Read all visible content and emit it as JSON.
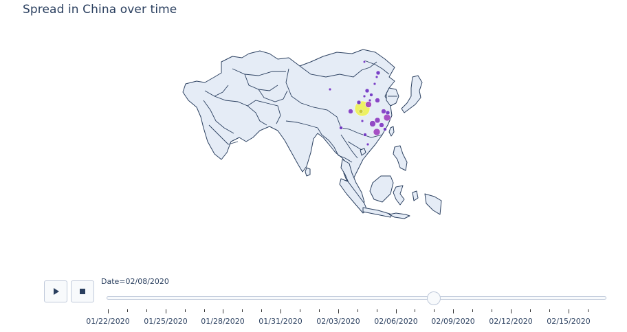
{
  "title": "Spread in China over time",
  "colors": {
    "land": "#e5ecf6",
    "border": "#2a3f5f",
    "bubble_low": "#6a2fc2",
    "bubble_mid": "#9e3fbf",
    "bubble_high": "#eff24a"
  },
  "slider": {
    "current_prefix": "Date=",
    "current_value": "02/08/2020",
    "current_index": 17,
    "frame_count": 26,
    "tick_labels": [
      "01/22/2020",
      "01/25/2020",
      "01/28/2020",
      "01/31/2020",
      "02/03/2020",
      "02/06/2020",
      "02/09/2020",
      "02/12/2020",
      "02/15/2020"
    ]
  },
  "controls": {
    "play_icon": "play-icon",
    "stop_icon": "stop-icon"
  }
}
